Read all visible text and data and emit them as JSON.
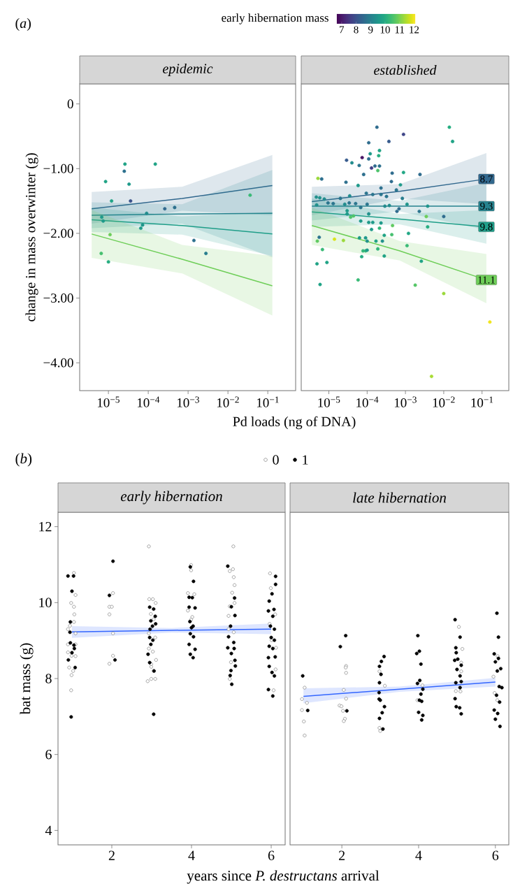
{
  "chart_data": [
    {
      "type": "scatter",
      "title": "epidemic",
      "xlabel": "Pd loads (ng of DNA)",
      "ylabel": "change in mass overwinter (g)",
      "clabel": "early hibernation mass",
      "clim": [
        6.65,
        12.1
      ],
      "cticks": [
        7,
        8,
        9,
        10,
        11,
        12
      ],
      "log": "x",
      "xlim": [
        1.9e-06,
        0.5
      ],
      "ylim": [
        -4.43,
        0.31
      ],
      "xticks": [
        {
          "value": 1e-05,
          "label": "10$^{−5}$"
        },
        {
          "value": 0.0001,
          "label": "10$^{−4}$"
        },
        {
          "value": 0.001,
          "label": "10$^{−3}$"
        },
        {
          "value": 0.01,
          "label": "10$^{−2}$"
        },
        {
          "value": 0.1,
          "label": "10$^{−1}$"
        }
      ],
      "yticks": [
        {
          "value": -4,
          "label": "−4.00"
        },
        {
          "value": -3,
          "label": "−3.00"
        },
        {
          "value": -2,
          "label": "−2.00"
        },
        {
          "value": -1,
          "label": "−1.00"
        },
        0
      ],
      "marker": "circle",
      "annotations": [
        "(*a*)"
      ],
      "series": [
        {
          "x": [
            2.6e-05,
            0.00015,
            2.5e-05,
            8.5e-06,
            3.3e-05,
            1.2e-05,
            3.6e-05,
            0.036,
            0.00026,
            0.00046,
            9.1e-05,
            6.8e-06,
            7.4e-06,
            7.2e-05,
            6.5e-05,
            1.1e-05,
            0.0014,
            0.0028,
            6.6e-06,
            1e-05
          ],
          "values": [
            -0.93,
            -0.93,
            -1.04,
            -1.2,
            -1.24,
            -1.5,
            -1.5,
            -1.41,
            -1.62,
            -1.6,
            -1.69,
            -1.75,
            -1.81,
            -1.87,
            -1.92,
            -2.02,
            -2.11,
            -2.31,
            -2.31,
            -2.44
          ],
          "colors": [
            "#20a386",
            "#20a386",
            "#2d708e",
            "#20a386",
            "#1f9a8a",
            "#20a386",
            "#3b528b",
            "#39ba76",
            "#31688e",
            "#2d708e",
            "#228c8d",
            "#1f9a8a",
            "#1f9a8a",
            "#1f958b",
            "#1f9a8a",
            "#6ccd5a",
            "#2d708e",
            "#287d8e",
            "#46c06f",
            "#26ad81"
          ],
          "cvalues": [
            9.8,
            9.8,
            8.7,
            9.8,
            9.6,
            9.8,
            8.0,
            10.3,
            8.5,
            8.7,
            9.3,
            9.6,
            9.6,
            9.5,
            9.6,
            10.9,
            8.7,
            9.0,
            10.5,
            10.0
          ]
        },
        {
          "type": "line",
          "marker": "none",
          "color": "#31688e",
          "x": [
            3.8e-06,
            0.00071,
            0.13
          ],
          "values": [
            -1.62,
            -1.46,
            -1.26
          ],
          "lower": [
            -1.85,
            -1.65,
            -1.72
          ],
          "upper": [
            -1.36,
            -1.28,
            -0.79
          ]
        },
        {
          "type": "line",
          "marker": "none",
          "color": "#26828e",
          "x": [
            3.8e-06,
            0.00071,
            0.13
          ],
          "values": [
            -1.72,
            -1.7,
            -1.69
          ],
          "lower": [
            -1.92,
            -1.85,
            -2.37
          ],
          "upper": [
            -1.52,
            -1.55,
            -1.02
          ]
        },
        {
          "type": "line",
          "marker": "none",
          "color": "#1f9e89",
          "x": [
            3.8e-06,
            0.00071,
            0.13
          ],
          "values": [
            -1.79,
            -1.88,
            -2.01
          ],
          "lower": [
            -1.98,
            -2.02,
            -2.35
          ],
          "upper": [
            -1.6,
            -1.74,
            -1.67
          ]
        },
        {
          "type": "line",
          "marker": "none",
          "color": "#6ece58",
          "x": [
            3.8e-06,
            0.00071,
            0.13
          ],
          "values": [
            -2.01,
            -2.4,
            -2.81
          ],
          "lower": [
            -2.38,
            -2.62,
            -3.27
          ],
          "upper": [
            -1.64,
            -2.18,
            -2.35
          ]
        }
      ]
    },
    {
      "type": "scatter",
      "title": "established",
      "legend": "right",
      "log": "x",
      "xlim": [
        1.9e-06,
        0.5
      ],
      "ylim": [
        -4.43,
        0.31
      ],
      "xticks": [
        {
          "value": 1e-05,
          "label": "10$^{−5}$"
        },
        {
          "value": 0.0001,
          "label": "10$^{−4}$"
        },
        {
          "value": 0.001,
          "label": "10$^{−3}$"
        },
        {
          "value": 0.01,
          "label": "10$^{−2}$"
        },
        {
          "value": 0.1,
          "label": "10$^{−1}$"
        }
      ],
      "tick_labels": "x",
      "marker": "circle",
      "series": [
        {
          "x": [
            0.00018,
            0.014,
            0.00089,
            0.00037,
            0.017,
            0.00011,
            0.00012,
            0.00021,
            0.0002,
            2.9e-05,
            7.4e-05,
            0.00011,
            4e-05,
            6.2e-05,
            0.00013,
            0.00016,
            0.00021,
            0.00019,
            8.1e-05,
            0.00045,
            0.00089,
            0.0024,
            5.2e-06,
            6.5e-06,
            2.8e-05,
            0.00043,
            5.8e-05,
            0.00074,
            0.00023,
            0.00058,
            9.5e-05,
            0.00014,
            0.00023,
            0.00032,
            0.00083,
            4.7e-06,
            5.8e-06,
            7.6e-06,
            2e-05,
            3.5e-05,
            9.5e-06,
            1.3e-05,
            4.8e-06,
            2.6e-05,
            3.4e-05,
            5e-05,
            6.8e-05,
            0.0001,
            0.00029,
            0.00038,
            0.0011,
            0.0038,
            3e-05,
            3e-05,
            4.4e-05,
            3.7e-05,
            0.00011,
            0.0006,
            0.00068,
            0.0023,
            0.0035,
            0.01,
            6.8e-05,
            0.00011,
            0.00014,
            0.00023,
            0.00046,
            0.0038,
            0.00013,
            0.00021,
            5.6e-06,
            5e-06,
            1.4e-05,
            2.4e-05,
            6.3e-05,
            9.1e-05,
            0.0001,
            0.00017,
            0.00025,
            0.00028,
            0.00044,
            0.0012,
            6.8e-06,
            7.8e-05,
            9.1e-05,
            0.0001,
            0.00019,
            0.0011,
            7.2e-05,
            0.00028,
            0.0026,
            4.9e-06,
            8.9e-06,
            5.9e-06,
            5.8e-05,
            0.0018,
            0.01,
            0.16,
            0.0048
          ],
          "values": [
            -0.36,
            -0.36,
            -0.47,
            -0.58,
            -0.58,
            -0.6,
            -0.77,
            -0.72,
            -0.8,
            -0.87,
            -0.83,
            -0.85,
            -0.91,
            -0.95,
            -0.99,
            -0.96,
            -0.96,
            -1.03,
            -1.09,
            -1.07,
            -1.06,
            -1.09,
            -1.15,
            -1.16,
            -1.21,
            -1.2,
            -1.26,
            -1.25,
            -1.3,
            -1.33,
            -1.38,
            -1.4,
            -1.4,
            -1.43,
            -1.46,
            -1.44,
            -1.45,
            -1.47,
            -1.46,
            -1.42,
            -1.53,
            -1.54,
            -1.56,
            -1.55,
            -1.53,
            -1.54,
            -1.6,
            -1.55,
            -1.58,
            -1.57,
            -1.55,
            -1.58,
            -1.65,
            -1.7,
            -1.73,
            -1.75,
            -1.7,
            -1.66,
            -1.62,
            -1.66,
            -1.74,
            -1.74,
            -1.81,
            -1.83,
            -1.83,
            -1.84,
            -1.88,
            -1.9,
            -1.94,
            -1.92,
            -2.06,
            -2.12,
            -2.09,
            -2.11,
            -2.07,
            -2.07,
            -2.12,
            -2.12,
            -2.12,
            -2.03,
            -2.02,
            -2.0,
            -2.25,
            -2.27,
            -2.27,
            -2.26,
            -2.24,
            -2.19,
            -2.36,
            -2.35,
            -2.43,
            -2.47,
            -2.45,
            -2.79,
            -2.72,
            -2.8,
            -2.93,
            -3.37,
            -4.21
          ],
          "colors": [
            "#2f6c8e",
            "#26ad81",
            "#404688",
            "#375b8d",
            "#20a386",
            "#2f6c8e",
            "#1f9a8a",
            "#20a386",
            "#26ad81",
            "#375b8d",
            "#471365",
            "#2f6c8e",
            "#228c8d",
            "#2b758e",
            "#433e85",
            "#2f6c8e",
            "#2d708e",
            "#4ec36b",
            "#2d708e",
            "#2f6c8e",
            "#22a785",
            "#2f6c8e",
            "#9bd93c",
            "#2d708e",
            "#2d708e",
            "#2f6c8e",
            "#1f9a8a",
            "#1f9a8a",
            "#2d708e",
            "#2b758e",
            "#2b758e",
            "#2b758e",
            "#2b758e",
            "#2b758e",
            "#287d8e",
            "#21918c",
            "#21918c",
            "#228c8d",
            "#2b758e",
            "#228c8d",
            "#2b758e",
            "#2b758e",
            "#21918c",
            "#228c8d",
            "#2b758e",
            "#2b758e",
            "#2b758e",
            "#2b758e",
            "#228c8d",
            "#228c8d",
            "#1f958b",
            "#1f958b",
            "#1f9a8a",
            "#1f9a8a",
            "#4ec36b",
            "#4ec36b",
            "#21918c",
            "#2f6c8e",
            "#2f6c8e",
            "#2b758e",
            "#6ccd5a",
            "#2f6c8e",
            "#1f9a8a",
            "#1f9a8a",
            "#1f9a8a",
            "#1f9a8a",
            "#5fca61",
            "#26ad81",
            "#1f9a8a",
            "#32b67a",
            "#2b758e",
            "#5fca61",
            "#dae319",
            "#9bd93c",
            "#1f9a8a",
            "#1f9a8a",
            "#21918c",
            "#20a386",
            "#21918c",
            "#20a386",
            "#46c06f",
            "#22a785",
            "#39ba76",
            "#32b67a",
            "#32b67a",
            "#1f9a8a",
            "#32b67a",
            "#39ba76",
            "#26ad81",
            "#20a386",
            "#20a386",
            "#20a386",
            "#20a386",
            "#20a386",
            "#39ba76",
            "#56c667",
            "#9bd93c",
            "#f1e51d",
            "#a8db34"
          ],
          "marker": "circle"
        },
        {
          "type": "line",
          "marker": "none",
          "name": "8.7",
          "color": "#31688e",
          "x": [
            3.6e-06,
            0.00071,
            0.13
          ],
          "values": [
            -1.51,
            -1.35,
            -1.16
          ],
          "lower": [
            -1.72,
            -1.46,
            -1.55
          ],
          "upper": [
            -1.28,
            -1.24,
            -0.76
          ]
        },
        {
          "type": "line",
          "marker": "none",
          "name": "9.3",
          "color": "#26828e",
          "x": [
            3.6e-06,
            0.00071,
            0.13
          ],
          "values": [
            -1.58,
            -1.58,
            -1.58
          ],
          "lower": [
            -1.8,
            -1.66,
            -1.95
          ],
          "upper": [
            -1.38,
            -1.5,
            -1.22
          ]
        },
        {
          "type": "line",
          "marker": "none",
          "name": "9.8",
          "color": "#1f9e89",
          "x": [
            3.6e-06,
            0.00071,
            0.13
          ],
          "values": [
            -1.67,
            -1.78,
            -1.9
          ],
          "lower": [
            -1.9,
            -1.86,
            -2.16
          ],
          "upper": [
            -1.46,
            -1.7,
            -1.64
          ]
        },
        {
          "type": "line",
          "marker": "none",
          "name": "11.1",
          "color": "#6ece58",
          "x": [
            3.6e-06,
            0.00071,
            0.13
          ],
          "values": [
            -1.88,
            -2.27,
            -2.72
          ],
          "lower": [
            -2.18,
            -2.42,
            -3.08
          ],
          "upper": [
            -1.6,
            -2.12,
            -2.32
          ]
        }
      ]
    },
    {
      "type": "scatter",
      "title": "early hibernation",
      "xlabel": "years since *P. destructans* arrival",
      "ylabel": "bat mass (g)",
      "xlim": [
        0.65,
        6.35
      ],
      "ylim": [
        3.62,
        12.38
      ],
      "xticks": [
        2,
        4,
        6
      ],
      "yticks": [
        4,
        6,
        8,
        10,
        12
      ],
      "marker": "circle",
      "legend": "top",
      "annotations": [
        "(*b*)"
      ],
      "series": [
        {
          "name": "0",
          "color": "#808080",
          "x": [
            1.05,
            1.09,
            0.98,
            1.05,
            1.06,
            1.05,
            0.9,
            0.95,
            1.09,
            0.9,
            0.9,
            1.09,
            1.09,
            0.93,
            1.03,
            0.99,
            0.98,
            0.99,
            2.03,
            1.94,
            2.0,
            1.94,
            2.03,
            2.03,
            1.94,
            2.93,
            2.94,
            3.03,
            3.1,
            2.98,
            3.05,
            2.93,
            3.09,
            2.93,
            3.03,
            3.11,
            2.99,
            3.05,
            2.9,
            2.99,
            3.09,
            2.99,
            3.99,
            3.99,
            3.91,
            4.07,
            4.02,
            3.99,
            3.91,
            5.05,
            4.96,
            5.04,
            5.06,
            5.08,
            5.02,
            5.08,
            4.96,
            4.93,
            5.06,
            4.99,
            4.96,
            4.93,
            5.97,
            5.99,
            6.1,
            5.96,
            6.12,
            6.11,
            6.06,
            6.01
          ],
          "values": [
            10.78,
            10.2,
            9.99,
            9.89,
            9.69,
            9.49,
            9.3,
            9.39,
            9.19,
            8.9,
            8.69,
            8.9,
            8.59,
            8.29,
            8.2,
            8.09,
            7.69,
            8.6,
            10.25,
            9.89,
            9.89,
            9.69,
            9.19,
            8.6,
            8.39,
            11.48,
            10.09,
            10.09,
            9.99,
            9.7,
            9.56,
            9.19,
            9.08,
            8.79,
            8.71,
            8.49,
            8.31,
            8.2,
            7.93,
            7.99,
            7.99,
            8.38,
            10.99,
            10.85,
            10.25,
            10.22,
            9.62,
            9.55,
            9.79,
            11.48,
            10.83,
            10.88,
            10.67,
            10.46,
            10.26,
            9.99,
            9.9,
            9.65,
            9.22,
            8.43,
            7.99,
            9.3,
            10.77,
            10.38,
            9.69,
            9.44,
            8.81,
            8.24,
            7.69,
            9.01
          ]
        },
        {
          "name": "1",
          "color": "#000000",
          "x": [
            0.9,
            1.04,
            1.0,
            0.95,
            0.96,
            0.91,
            1.08,
            0.98,
            1.0,
            1.05,
            0.96,
            1.06,
            2.03,
            1.94,
            2.08,
            2.95,
            3.05,
            3.09,
            3.02,
            3.1,
            2.96,
            2.95,
            3.03,
            2.98,
            2.91,
            2.95,
            3.06,
            3.05,
            2.98,
            3.97,
            4.05,
            3.94,
            4.02,
            3.94,
            4.09,
            3.96,
            4.04,
            3.97,
            4.05,
            3.94,
            4.09,
            3.97,
            4.04,
            4.0,
            4.91,
            5.08,
            5.0,
            5.09,
            4.98,
            4.93,
            5.06,
            4.91,
            5.07,
            5.0,
            5.09,
            5.1,
            4.99,
            5.01,
            4.97,
            6.11,
            6.11,
            6.02,
            5.95,
            6.07,
            5.93,
            6.04,
            5.98,
            6.08,
            6.0,
            6.08,
            5.95,
            6.04,
            5.93,
            6.1,
            5.95,
            6.02,
            6.08,
            5.93,
            6.04
          ],
          "values": [
            10.7,
            10.7,
            10.3,
            9.22,
            9.49,
            8.49,
            8.29,
            6.99,
            8.68,
            8.88,
            8.94,
            8.79,
            11.09,
            10.19,
            8.49,
            9.88,
            9.83,
            9.64,
            9.38,
            9.44,
            9.3,
            9.08,
            9.01,
            8.9,
            8.64,
            8.42,
            8.2,
            7.06,
            9.52,
            10.94,
            10.56,
            10.14,
            10.13,
            9.88,
            9.86,
            9.5,
            9.38,
            9.18,
            9.1,
            8.9,
            8.77,
            8.64,
            8.55,
            9.34,
            10.96,
            10.12,
            9.89,
            9.66,
            9.38,
            9.1,
            8.95,
            8.81,
            8.79,
            8.66,
            8.48,
            8.33,
            8.21,
            7.85,
            8.08,
            10.69,
            10.48,
            10.23,
            10.04,
            9.82,
            9.78,
            9.64,
            9.38,
            9.3,
            9.08,
            9.01,
            8.85,
            8.79,
            8.55,
            8.57,
            8.32,
            8.16,
            8.07,
            7.71,
            7.54
          ]
        },
        {
          "type": "line",
          "marker": "none",
          "color": "#3366ff",
          "x": [
            1,
            3.5,
            6
          ],
          "values": [
            9.23,
            9.27,
            9.3
          ],
          "lower": [
            9.07,
            9.21,
            9.17
          ],
          "upper": [
            9.38,
            9.33,
            9.45
          ]
        }
      ]
    },
    {
      "type": "scatter",
      "title": "late hibernation",
      "xlim": [
        0.65,
        6.35
      ],
      "ylim": [
        3.62,
        12.38
      ],
      "xticks": [
        2,
        4,
        6
      ],
      "tick_labels": "x",
      "marker": "circle",
      "series": [
        {
          "color": "#808080",
          "x": [
            1.03,
            0.96,
            1.09,
            0.96,
            1.01,
            1.03,
            2.11,
            2.1,
            2.11,
            2.05,
            2.11,
            1.94,
            1.99,
            2.03,
            2.08,
            2.05,
            2.98,
            3.12,
            2.98,
            3.0,
            4.1,
            3.97,
            5.05,
            5.14,
            5.11,
            5.11,
            4.97,
            5.09,
            6.06,
            5.95,
            5.98,
            6.05
          ],
          "values": [
            7.76,
            7.46,
            7.36,
            7.17,
            6.87,
            6.5,
            8.33,
            8.29,
            8.15,
            7.7,
            7.47,
            7.29,
            7.27,
            7.15,
            6.94,
            6.88,
            8.19,
            7.81,
            6.7,
            6.62,
            7.82,
            7.43,
            9.36,
            8.78,
            8.42,
            8.19,
            7.67,
            7.66,
            8.59,
            8.05,
            7.62,
            7.43
          ]
        },
        {
          "color": "#000000",
          "x": [
            0.98,
            1.11,
            2.1,
            1.96,
            2.13,
            3.1,
            3.03,
            2.98,
            3.02,
            2.98,
            2.97,
            3.0,
            3.11,
            3.05,
            2.98,
            3.07,
            2.97,
            3.98,
            4.02,
            3.95,
            4.06,
            4.03,
            3.97,
            4.11,
            4.06,
            4.02,
            4.08,
            4.0,
            4.11,
            4.08,
            4.95,
            5.08,
            4.97,
            4.98,
            5.02,
            4.94,
            5.11,
            5.0,
            5.08,
            4.97,
            5.11,
            5.08,
            4.95,
            4.98,
            5.07,
            5.11,
            6.04,
            6.08,
            5.97,
            6.0,
            6.08,
            6.14,
            6.05,
            6.1,
            6.17,
            6.03,
            6.11,
            5.97,
            6.06,
            6.0,
            6.12
          ],
          "values": [
            8.07,
            7.16,
            9.13,
            8.84,
            7.15,
            8.58,
            8.45,
            8.32,
            8.11,
            7.89,
            7.63,
            7.43,
            7.26,
            7.1,
            6.95,
            6.67,
            7.46,
            9.13,
            8.72,
            8.66,
            8.38,
            7.95,
            7.87,
            7.72,
            7.59,
            7.43,
            7.4,
            7.11,
            7.03,
            6.91,
            9.55,
            9.09,
            8.81,
            8.68,
            8.51,
            8.48,
            8.35,
            8.24,
            8.07,
            7.89,
            7.92,
            7.76,
            7.47,
            7.26,
            7.23,
            7.07,
            9.72,
            9.09,
            8.65,
            8.44,
            8.53,
            8.26,
            8.2,
            7.79,
            7.76,
            7.56,
            7.38,
            7.17,
            7.08,
            6.93,
            6.74
          ]
        },
        {
          "type": "line",
          "marker": "none",
          "color": "#3366ff",
          "x": [
            1,
            3.5,
            6
          ],
          "values": [
            7.53,
            7.72,
            7.91
          ],
          "lower": [
            7.35,
            7.65,
            7.79
          ],
          "upper": [
            7.74,
            7.79,
            8.02
          ]
        }
      ]
    }
  ]
}
